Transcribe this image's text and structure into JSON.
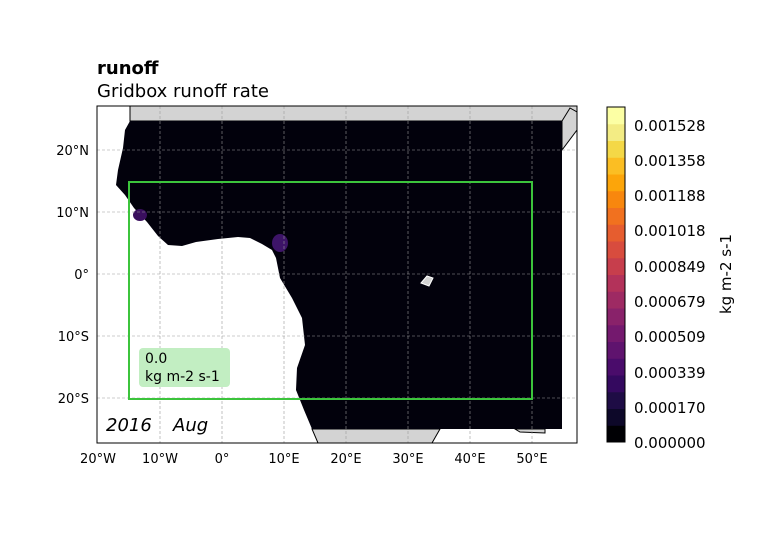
{
  "header": {
    "title": "runoff",
    "subtitle": "Gridbox runoff rate"
  },
  "map": {
    "stamp_year": "2016",
    "stamp_month": "Aug",
    "value_box": {
      "value": "0.0",
      "unit": "kg m-2 s-1"
    },
    "x_ticks": [
      "20°W",
      "10°W",
      "0°",
      "10°E",
      "20°E",
      "30°E",
      "40°E",
      "50°E"
    ],
    "y_ticks": [
      "20°N",
      "10°N",
      "0°",
      "10°S",
      "20°S"
    ],
    "region_box_lon": [
      -15,
      50
    ],
    "region_box_lat": [
      -20,
      15
    ],
    "colors": {
      "land": "#d3d3d3",
      "ocean": "#ffffff",
      "field": "#02010c",
      "region_box": "#3cc43c",
      "value_box_bg": "#c2eec2"
    }
  },
  "colorbar": {
    "label": "kg m-2 s-1",
    "tick_labels": [
      "0.001528",
      "0.001358",
      "0.001188",
      "0.001018",
      "0.000849",
      "0.000679",
      "0.000509",
      "0.000339",
      "0.000170",
      "0.000000"
    ],
    "range": [
      0,
      0.0017
    ],
    "colors": [
      "#000004",
      "#0d0829",
      "#1e0c45",
      "#34095f",
      "#4a0c6b",
      "#5f136e",
      "#74196e",
      "#89226a",
      "#9e2a63",
      "#b3325a",
      "#c73e4c",
      "#d84c3e",
      "#e65d2f",
      "#f1711f",
      "#f8870e",
      "#fca50a",
      "#fbbe23",
      "#f4d847",
      "#f3ec84",
      "#fcffa4"
    ]
  }
}
